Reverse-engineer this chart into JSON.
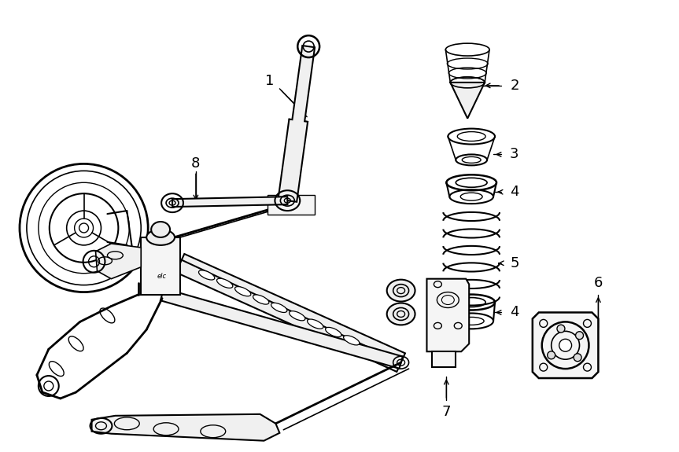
{
  "bg_color": "#ffffff",
  "line_color": "#000000",
  "fig_width": 8.63,
  "fig_height": 5.75,
  "dpi": 100,
  "xlim": [
    0,
    863
  ],
  "ylim": [
    575,
    0
  ]
}
